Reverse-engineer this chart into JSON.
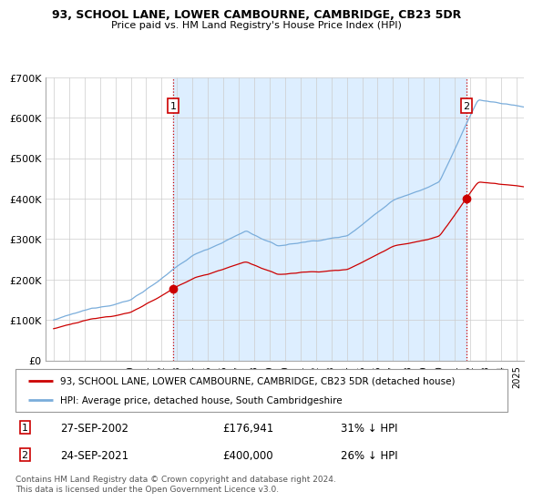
{
  "title": "93, SCHOOL LANE, LOWER CAMBOURNE, CAMBRIDGE, CB23 5DR",
  "subtitle": "Price paid vs. HM Land Registry's House Price Index (HPI)",
  "property_label": "93, SCHOOL LANE, LOWER CAMBOURNE, CAMBRIDGE, CB23 5DR (detached house)",
  "hpi_label": "HPI: Average price, detached house, South Cambridgeshire",
  "sale1_date": "27-SEP-2002",
  "sale1_price": "£176,941",
  "sale1_hpi": "31% ↓ HPI",
  "sale2_date": "24-SEP-2021",
  "sale2_price": "£400,000",
  "sale2_hpi": "26% ↓ HPI",
  "footer": "Contains HM Land Registry data © Crown copyright and database right 2024.\nThis data is licensed under the Open Government Licence v3.0.",
  "property_color": "#cc0000",
  "hpi_color": "#7aaddb",
  "shade_color": "#ddeeff",
  "sale1_x": 2002.75,
  "sale1_y": 176941,
  "sale2_x": 2021.75,
  "sale2_y": 400000,
  "ylim": [
    0,
    700000
  ],
  "xlim": [
    1994.5,
    2025.5
  ],
  "yticks": [
    0,
    100000,
    200000,
    300000,
    400000,
    500000,
    600000,
    700000
  ],
  "ytick_labels": [
    "£0",
    "£100K",
    "£200K",
    "£300K",
    "£400K",
    "£500K",
    "£600K",
    "£700K"
  ],
  "xticks": [
    1995,
    1996,
    1997,
    1998,
    1999,
    2000,
    2001,
    2002,
    2003,
    2004,
    2005,
    2006,
    2007,
    2008,
    2009,
    2010,
    2011,
    2012,
    2013,
    2014,
    2015,
    2016,
    2017,
    2018,
    2019,
    2020,
    2021,
    2022,
    2023,
    2024,
    2025
  ]
}
